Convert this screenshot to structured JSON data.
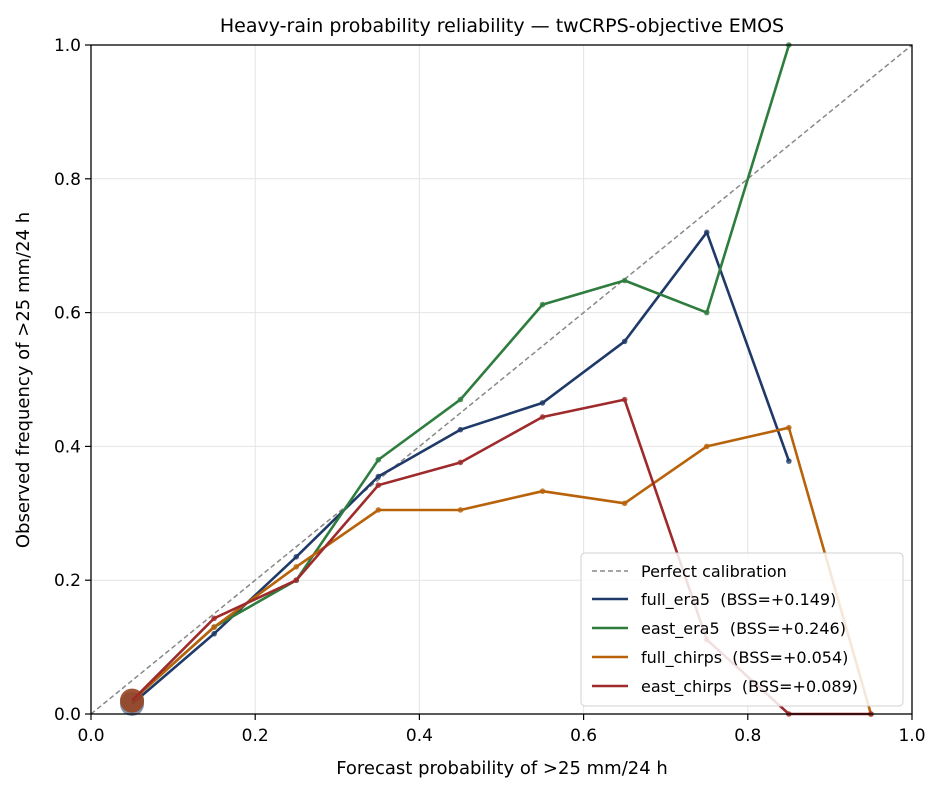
{
  "chart_data": {
    "type": "line",
    "title": "Heavy-rain probability reliability — twCRPS-objective EMOS",
    "xlabel": "Forecast probability of >25 mm/24 h",
    "ylabel": "Observed frequency of >25 mm/24 h",
    "xlim": [
      0.0,
      1.0
    ],
    "ylim": [
      0.0,
      1.0
    ],
    "xticks": [
      0.0,
      0.2,
      0.4,
      0.6,
      0.8,
      1.0
    ],
    "yticks": [
      0.0,
      0.2,
      0.4,
      0.6,
      0.8,
      1.0
    ],
    "xtick_labels": [
      "0.0",
      "0.2",
      "0.4",
      "0.6",
      "0.8",
      "1.0"
    ],
    "ytick_labels": [
      "0.0",
      "0.2",
      "0.4",
      "0.6",
      "0.8",
      "1.0"
    ],
    "grid": true,
    "legend_position": "bottom-right",
    "reference_line": {
      "name": "Perfect calibration",
      "x": [
        0.0,
        1.0
      ],
      "y": [
        0.0,
        1.0
      ],
      "color": "#888888",
      "style": "dashed"
    },
    "series": [
      {
        "name": "full_era5  (BSS=+0.149)",
        "color": "#1f3a68",
        "x": [
          0.05,
          0.15,
          0.25,
          0.35,
          0.45,
          0.55,
          0.65,
          0.75,
          0.85
        ],
        "y": [
          0.015,
          0.12,
          0.235,
          0.355,
          0.425,
          0.465,
          0.557,
          0.72,
          0.378
        ]
      },
      {
        "name": "east_era5  (BSS=+0.246)",
        "color": "#2e7d3e",
        "x": [
          0.05,
          0.15,
          0.25,
          0.35,
          0.45,
          0.55,
          0.65,
          0.75,
          0.85
        ],
        "y": [
          0.02,
          0.13,
          0.2,
          0.38,
          0.47,
          0.612,
          0.648,
          0.6,
          1.0
        ]
      },
      {
        "name": "full_chirps  (BSS=+0.054)",
        "color": "#b8620a",
        "x": [
          0.05,
          0.15,
          0.25,
          0.35,
          0.45,
          0.55,
          0.65,
          0.75,
          0.85,
          0.95
        ],
        "y": [
          0.02,
          0.13,
          0.22,
          0.305,
          0.305,
          0.333,
          0.315,
          0.4,
          0.428,
          0.0
        ]
      },
      {
        "name": "east_chirps  (BSS=+0.089)",
        "color": "#9e2a2b",
        "x": [
          0.05,
          0.15,
          0.25,
          0.35,
          0.45,
          0.55,
          0.65,
          0.75,
          0.85,
          0.95
        ],
        "y": [
          0.02,
          0.143,
          0.2,
          0.342,
          0.376,
          0.444,
          0.47,
          0.111,
          0.0,
          0.0
        ]
      }
    ]
  }
}
